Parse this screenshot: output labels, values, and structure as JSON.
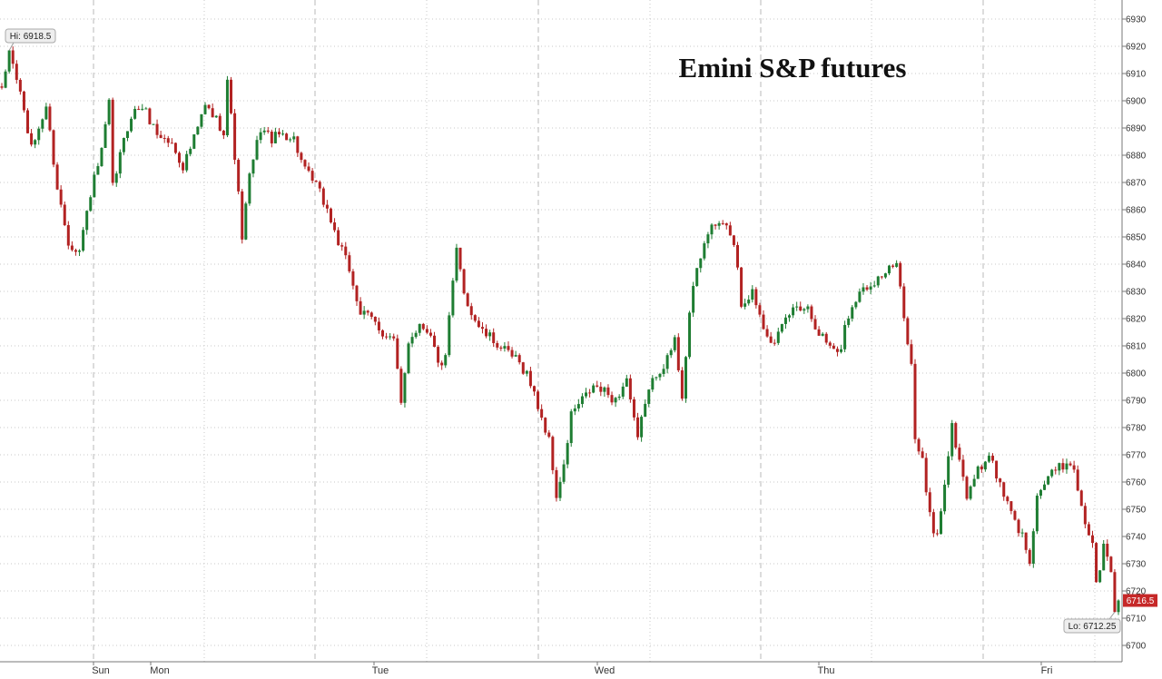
{
  "chart_data": {
    "type": "candlestick",
    "title": "Emini S&P futures",
    "ylim": [
      6700,
      6930
    ],
    "y_ticks": [
      6700,
      6710,
      6720,
      6730,
      6740,
      6750,
      6760,
      6770,
      6780,
      6790,
      6800,
      6810,
      6820,
      6830,
      6840,
      6850,
      6860,
      6870,
      6880,
      6890,
      6900,
      6910,
      6920,
      6930
    ],
    "x_ticks": [
      "Sun",
      "Mon",
      "Tue",
      "Wed",
      "Thu",
      "Fri"
    ],
    "grid": true,
    "colors": {
      "up": "#1e7d32",
      "down": "#b22222",
      "grid": "#c8c8c8",
      "axis": "#777777",
      "last_badge": "#c62828"
    },
    "series_keypoints": [
      [
        0,
        6903
      ],
      [
        2,
        6918.5
      ],
      [
        5,
        6903
      ],
      [
        8,
        6882
      ],
      [
        12,
        6898
      ],
      [
        15,
        6868
      ],
      [
        18,
        6848
      ],
      [
        21,
        6845
      ],
      [
        24,
        6866
      ],
      [
        27,
        6881
      ],
      [
        29,
        6899
      ],
      [
        30,
        6868
      ],
      [
        32,
        6880
      ],
      [
        35,
        6895
      ],
      [
        38,
        6898
      ],
      [
        42,
        6888
      ],
      [
        46,
        6884
      ],
      [
        49,
        6876
      ],
      [
        52,
        6886
      ],
      [
        55,
        6898
      ],
      [
        58,
        6893
      ],
      [
        60,
        6889
      ],
      [
        61,
        6908
      ],
      [
        63,
        6880
      ],
      [
        65,
        6850
      ],
      [
        67,
        6872
      ],
      [
        70,
        6890
      ],
      [
        73,
        6886
      ],
      [
        76,
        6888
      ],
      [
        79,
        6886
      ],
      [
        82,
        6874
      ],
      [
        85,
        6869
      ],
      [
        88,
        6860
      ],
      [
        91,
        6848
      ],
      [
        94,
        6838
      ],
      [
        97,
        6822
      ],
      [
        100,
        6820
      ],
      [
        103,
        6815
      ],
      [
        106,
        6812
      ],
      [
        108,
        6788
      ],
      [
        110,
        6812
      ],
      [
        113,
        6818
      ],
      [
        116,
        6815
      ],
      [
        118,
        6803
      ],
      [
        120,
        6805
      ],
      [
        121,
        6820
      ],
      [
        123,
        6845
      ],
      [
        125,
        6830
      ],
      [
        127,
        6822
      ],
      [
        130,
        6815
      ],
      [
        133,
        6812
      ],
      [
        136,
        6808
      ],
      [
        139,
        6805
      ],
      [
        142,
        6800
      ],
      [
        145,
        6788
      ],
      [
        148,
        6775
      ],
      [
        150,
        6755
      ],
      [
        152,
        6765
      ],
      [
        154,
        6785
      ],
      [
        157,
        6790
      ],
      [
        160,
        6795
      ],
      [
        163,
        6793
      ],
      [
        166,
        6790
      ],
      [
        169,
        6798
      ],
      [
        171,
        6782
      ],
      [
        172,
        6775
      ],
      [
        174,
        6790
      ],
      [
        177,
        6800
      ],
      [
        180,
        6805
      ],
      [
        182,
        6812
      ],
      [
        184,
        6792
      ],
      [
        186,
        6822
      ],
      [
        188,
        6838
      ],
      [
        191,
        6852
      ],
      [
        194,
        6855
      ],
      [
        197,
        6852
      ],
      [
        199,
        6840
      ],
      [
        200,
        6825
      ],
      [
        203,
        6830
      ],
      [
        206,
        6818
      ],
      [
        209,
        6810
      ],
      [
        212,
        6820
      ],
      [
        215,
        6825
      ],
      [
        218,
        6824
      ],
      [
        221,
        6815
      ],
      [
        224,
        6810
      ],
      [
        227,
        6808
      ],
      [
        228,
        6818
      ],
      [
        231,
        6828
      ],
      [
        234,
        6832
      ],
      [
        237,
        6835
      ],
      [
        240,
        6838
      ],
      [
        242,
        6840
      ],
      [
        244,
        6820
      ],
      [
        246,
        6805
      ],
      [
        247,
        6775
      ],
      [
        249,
        6768
      ],
      [
        250,
        6755
      ],
      [
        252,
        6742
      ],
      [
        253,
        6740
      ],
      [
        255,
        6760
      ],
      [
        257,
        6780
      ],
      [
        259,
        6768
      ],
      [
        261,
        6755
      ],
      [
        263,
        6762
      ],
      [
        266,
        6768
      ],
      [
        268,
        6768
      ],
      [
        270,
        6758
      ],
      [
        272,
        6752
      ],
      [
        274,
        6745
      ],
      [
        276,
        6740
      ],
      [
        278,
        6732
      ],
      [
        280,
        6755
      ],
      [
        283,
        6762
      ],
      [
        286,
        6765
      ],
      [
        289,
        6768
      ],
      [
        291,
        6758
      ],
      [
        293,
        6745
      ],
      [
        295,
        6738
      ],
      [
        296,
        6722
      ],
      [
        298,
        6736
      ],
      [
        300,
        6728
      ],
      [
        301,
        6712.25
      ],
      [
        302,
        6716.5
      ]
    ],
    "high": {
      "label": "Hi: 6918.5",
      "value": 6918.5
    },
    "low": {
      "label": "Lo: 6712.25",
      "value": 6712.25
    },
    "last": {
      "label": "6716.5",
      "value": 6716.5
    }
  }
}
